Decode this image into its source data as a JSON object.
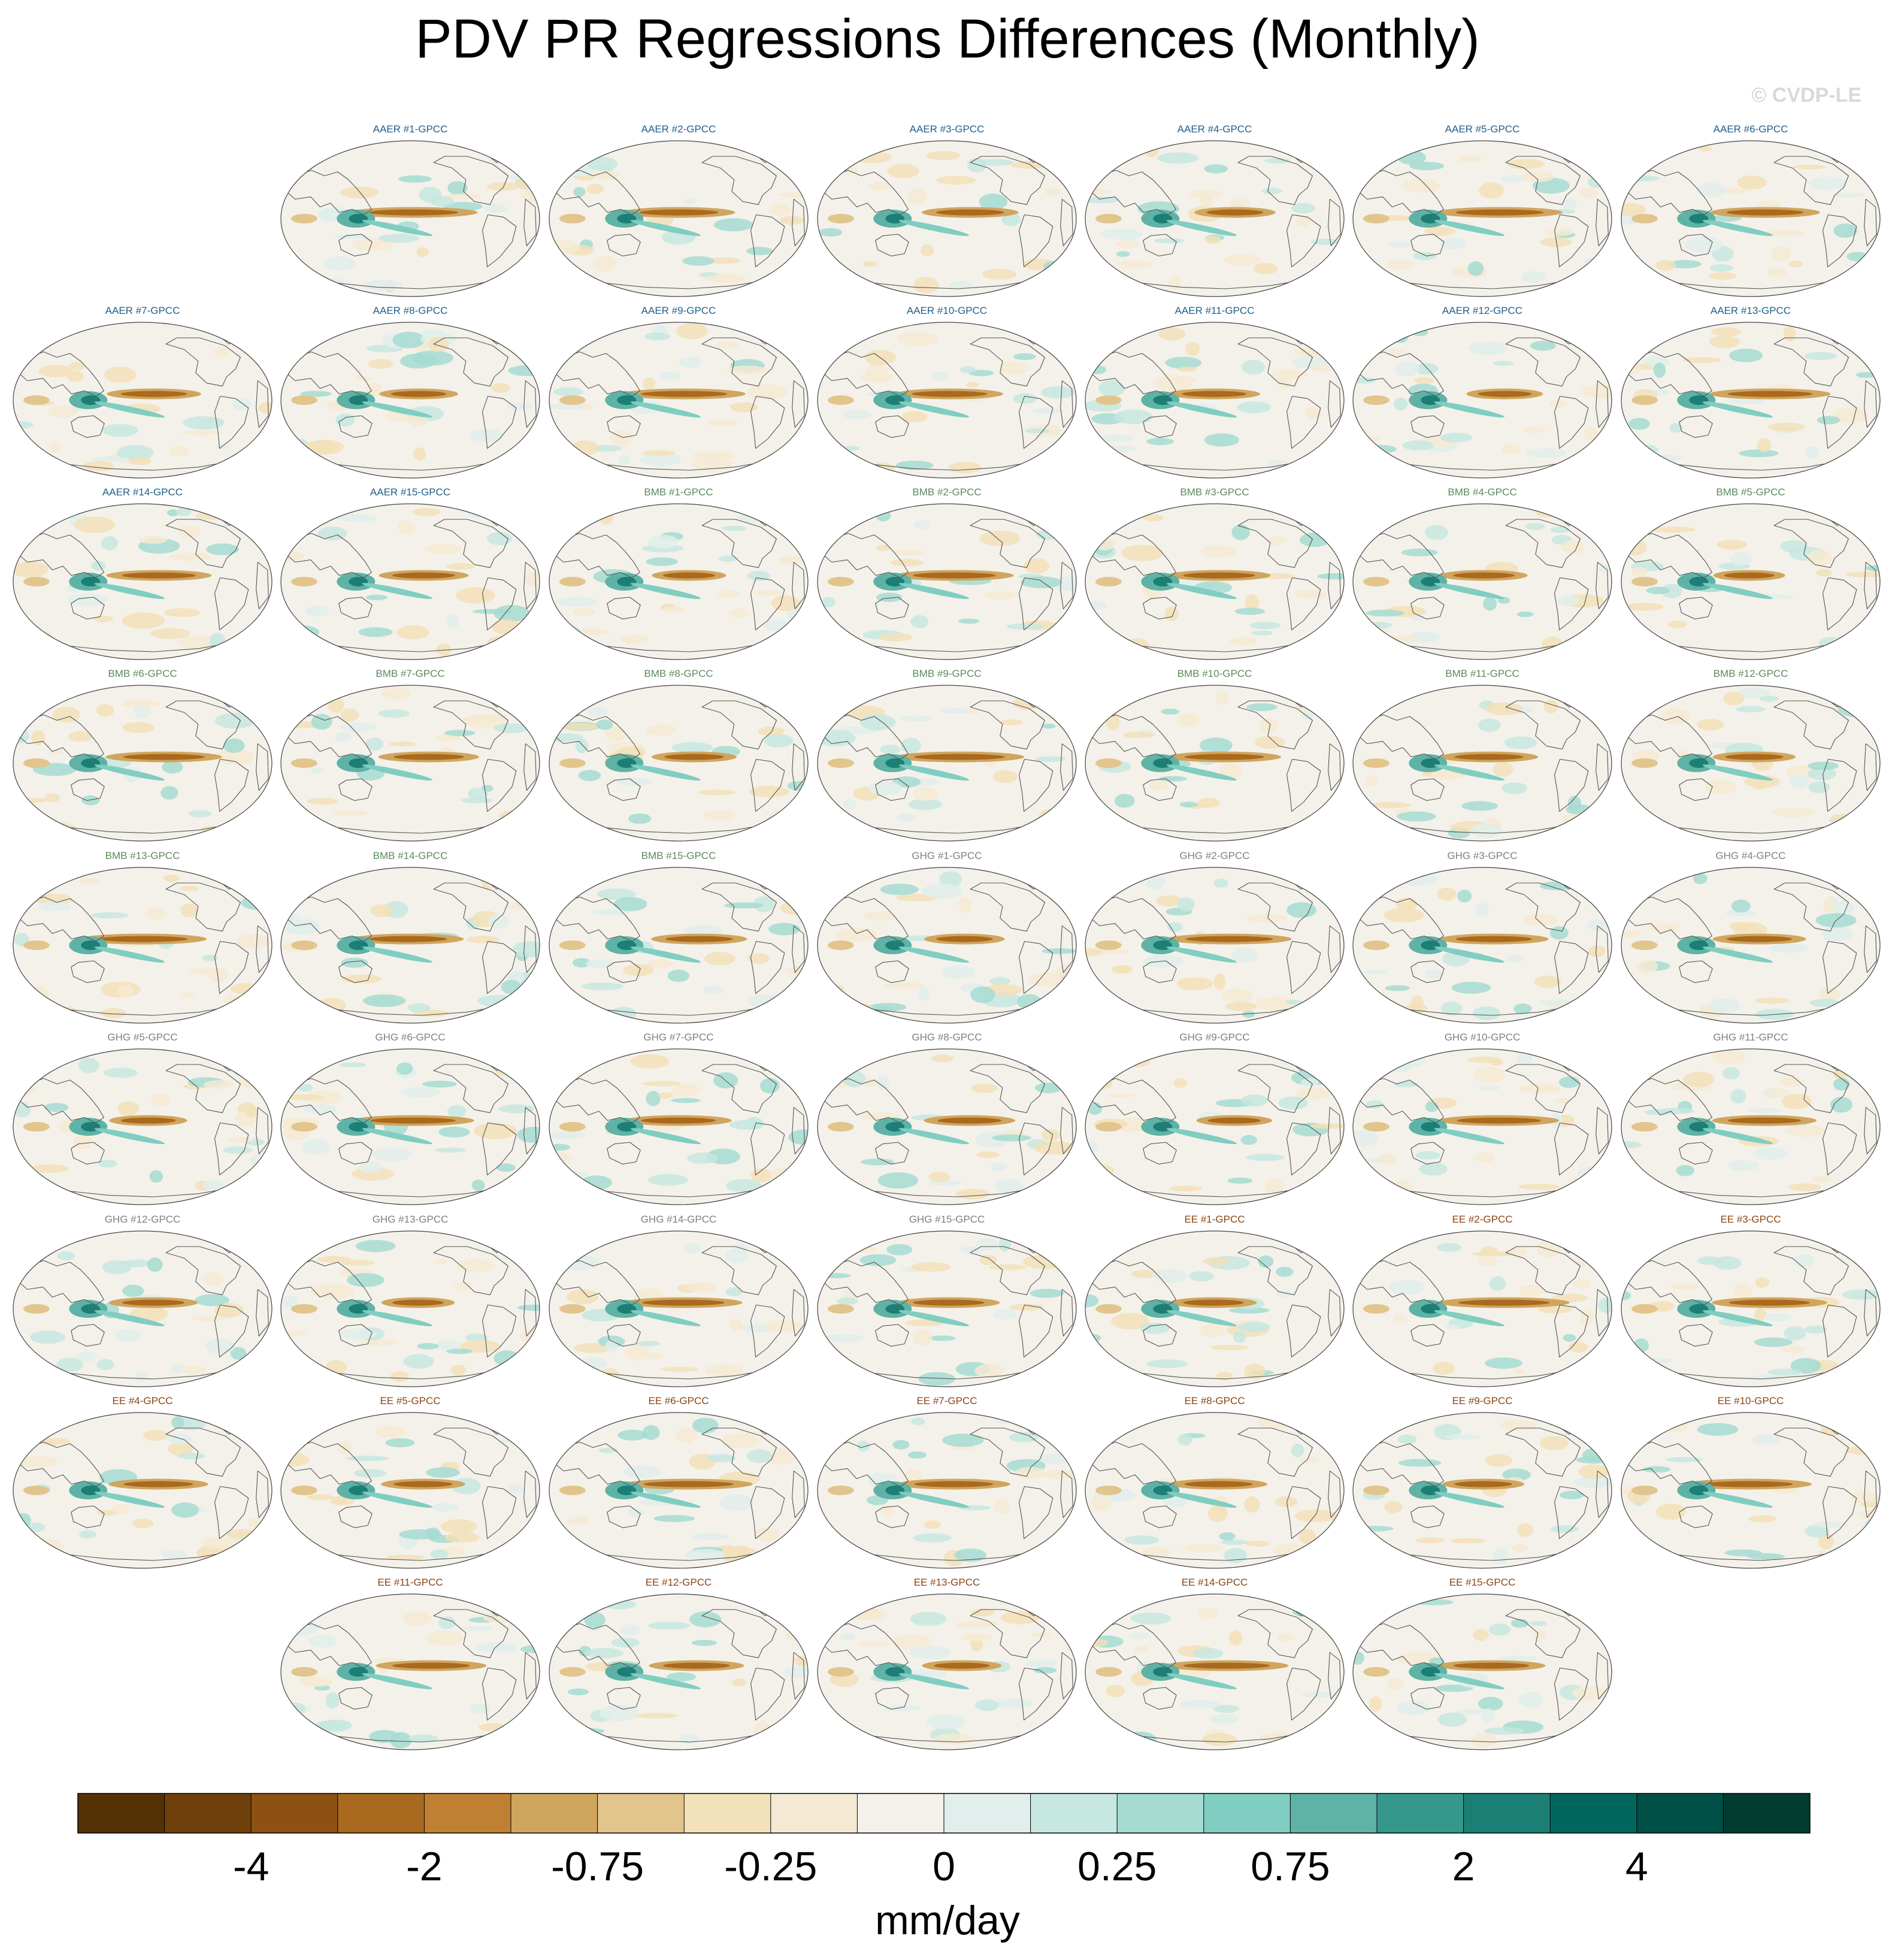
{
  "title": "PDV PR Regressions Differences (Monthly)",
  "copyright": "© CVDP-LE",
  "chart_data": {
    "type": "heatmap",
    "title": "PDV PR Regressions Differences (Monthly)",
    "projection": "robinson-global-map",
    "panels": [
      {
        "label": "AAER #1-GPCC",
        "group": "AAER"
      },
      {
        "label": "AAER #2-GPCC",
        "group": "AAER"
      },
      {
        "label": "AAER #3-GPCC",
        "group": "AAER"
      },
      {
        "label": "AAER #4-GPCC",
        "group": "AAER"
      },
      {
        "label": "AAER #5-GPCC",
        "group": "AAER"
      },
      {
        "label": "AAER #6-GPCC",
        "group": "AAER"
      },
      {
        "label": "AAER #7-GPCC",
        "group": "AAER"
      },
      {
        "label": "AAER #8-GPCC",
        "group": "AAER"
      },
      {
        "label": "AAER #9-GPCC",
        "group": "AAER"
      },
      {
        "label": "AAER #10-GPCC",
        "group": "AAER"
      },
      {
        "label": "AAER #11-GPCC",
        "group": "AAER"
      },
      {
        "label": "AAER #12-GPCC",
        "group": "AAER"
      },
      {
        "label": "AAER #13-GPCC",
        "group": "AAER"
      },
      {
        "label": "AAER #14-GPCC",
        "group": "AAER"
      },
      {
        "label": "AAER #15-GPCC",
        "group": "AAER"
      },
      {
        "label": "BMB #1-GPCC",
        "group": "BMB"
      },
      {
        "label": "BMB #2-GPCC",
        "group": "BMB"
      },
      {
        "label": "BMB #3-GPCC",
        "group": "BMB"
      },
      {
        "label": "BMB #4-GPCC",
        "group": "BMB"
      },
      {
        "label": "BMB #5-GPCC",
        "group": "BMB"
      },
      {
        "label": "BMB #6-GPCC",
        "group": "BMB"
      },
      {
        "label": "BMB #7-GPCC",
        "group": "BMB"
      },
      {
        "label": "BMB #8-GPCC",
        "group": "BMB"
      },
      {
        "label": "BMB #9-GPCC",
        "group": "BMB"
      },
      {
        "label": "BMB #10-GPCC",
        "group": "BMB"
      },
      {
        "label": "BMB #11-GPCC",
        "group": "BMB"
      },
      {
        "label": "BMB #12-GPCC",
        "group": "BMB"
      },
      {
        "label": "BMB #13-GPCC",
        "group": "BMB"
      },
      {
        "label": "BMB #14-GPCC",
        "group": "BMB"
      },
      {
        "label": "BMB #15-GPCC",
        "group": "BMB"
      },
      {
        "label": "GHG #1-GPCC",
        "group": "GHG"
      },
      {
        "label": "GHG #2-GPCC",
        "group": "GHG"
      },
      {
        "label": "GHG #3-GPCC",
        "group": "GHG"
      },
      {
        "label": "GHG #4-GPCC",
        "group": "GHG"
      },
      {
        "label": "GHG #5-GPCC",
        "group": "GHG"
      },
      {
        "label": "GHG #6-GPCC",
        "group": "GHG"
      },
      {
        "label": "GHG #7-GPCC",
        "group": "GHG"
      },
      {
        "label": "GHG #8-GPCC",
        "group": "GHG"
      },
      {
        "label": "GHG #9-GPCC",
        "group": "GHG"
      },
      {
        "label": "GHG #10-GPCC",
        "group": "GHG"
      },
      {
        "label": "GHG #11-GPCC",
        "group": "GHG"
      },
      {
        "label": "GHG #12-GPCC",
        "group": "GHG"
      },
      {
        "label": "GHG #13-GPCC",
        "group": "GHG"
      },
      {
        "label": "GHG #14-GPCC",
        "group": "GHG"
      },
      {
        "label": "GHG #15-GPCC",
        "group": "GHG"
      },
      {
        "label": "EE #1-GPCC",
        "group": "EE"
      },
      {
        "label": "EE #2-GPCC",
        "group": "EE"
      },
      {
        "label": "EE #3-GPCC",
        "group": "EE"
      },
      {
        "label": "EE #4-GPCC",
        "group": "EE"
      },
      {
        "label": "EE #5-GPCC",
        "group": "EE"
      },
      {
        "label": "EE #6-GPCC",
        "group": "EE"
      },
      {
        "label": "EE #7-GPCC",
        "group": "EE"
      },
      {
        "label": "EE #8-GPCC",
        "group": "EE"
      },
      {
        "label": "EE #9-GPCC",
        "group": "EE"
      },
      {
        "label": "EE #10-GPCC",
        "group": "EE"
      },
      {
        "label": "EE #11-GPCC",
        "group": "EE"
      },
      {
        "label": "EE #12-GPCC",
        "group": "EE"
      },
      {
        "label": "EE #13-GPCC",
        "group": "EE"
      },
      {
        "label": "EE #14-GPCC",
        "group": "EE"
      },
      {
        "label": "EE #15-GPCC",
        "group": "EE"
      }
    ],
    "group_colors": {
      "AAER": "#1f5f8b",
      "BMB": "#5b8a5b",
      "GHG": "#808080",
      "EE": "#8b4513"
    },
    "colorbar": {
      "units": "mm/day",
      "tick_labels": [
        "-4",
        "-2",
        "-0.75",
        "-0.25",
        "0",
        "0.25",
        "0.75",
        "2",
        "4"
      ],
      "colors": [
        "#543005",
        "#70400c",
        "#8c5113",
        "#a9691e",
        "#c08033",
        "#d0a55e",
        "#e2c58c",
        "#f2e1b9",
        "#f4ead3",
        "#f4f1ea",
        "#e1eeeb",
        "#c6e8e1",
        "#a4dcd2",
        "#80cdc1",
        "#5fb2a6",
        "#36978d",
        "#1c7f75",
        "#01665e",
        "#004f46",
        "#003c30"
      ]
    }
  }
}
